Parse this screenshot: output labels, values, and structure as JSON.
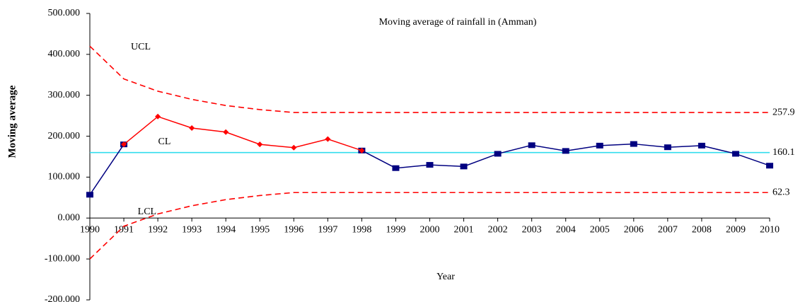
{
  "chart_data": {
    "type": "line",
    "title": "Moving average of rainfall in (Amman)",
    "x_label": "Year",
    "y_label": "Moving average",
    "categories": [
      "1990",
      "1991",
      "1992",
      "1993",
      "1994",
      "1995",
      "1996",
      "1997",
      "1998",
      "1999",
      "2000",
      "2001",
      "2002",
      "2003",
      "2004",
      "2005",
      "2006",
      "2007",
      "2008",
      "2009",
      "2010"
    ],
    "ylim": [
      -200,
      500
    ],
    "yticks": [
      {
        "value": -200,
        "label": "-200.000"
      },
      {
        "value": -100,
        "label": "-100.000"
      },
      {
        "value": 0,
        "label": "0.000"
      },
      {
        "value": 100,
        "label": "100.000"
      },
      {
        "value": 200,
        "label": "200.000"
      },
      {
        "value": 300,
        "label": "300.000"
      },
      {
        "value": 400,
        "label": "400.000"
      },
      {
        "value": 500,
        "label": "500.000"
      }
    ],
    "series": [
      {
        "color": "#000080",
        "marker": "square",
        "values": [
          57,
          180,
          null,
          null,
          null,
          null,
          null,
          null,
          165,
          122,
          130,
          126,
          157,
          178,
          164,
          177,
          181,
          173,
          177,
          157,
          128
        ]
      },
      {
        "color": "#ff0000",
        "marker": "diamond",
        "values": [
          null,
          180,
          248,
          220,
          210,
          180,
          172,
          193,
          165,
          null,
          null,
          null,
          null,
          null,
          null,
          null,
          null,
          null,
          null,
          null,
          null
        ]
      }
    ],
    "control_lines": [
      {
        "name": "UCL",
        "color": "#ff0000",
        "dashed": true,
        "end_value_label": "257.9",
        "values": [
          420,
          340,
          310,
          290,
          275,
          265,
          257.9,
          257.9,
          257.9,
          257.9,
          257.9,
          257.9,
          257.9,
          257.9,
          257.9,
          257.9,
          257.9,
          257.9,
          257.9,
          257.9,
          257.9
        ]
      },
      {
        "name": "CL",
        "color": "#33ddee",
        "dashed": false,
        "end_value_label": "160.1",
        "values": [
          160.1,
          160.1,
          160.1,
          160.1,
          160.1,
          160.1,
          160.1,
          160.1,
          160.1,
          160.1,
          160.1,
          160.1,
          160.1,
          160.1,
          160.1,
          160.1,
          160.1,
          160.1,
          160.1,
          160.1,
          160.1
        ]
      },
      {
        "name": "LCL",
        "color": "#ff0000",
        "dashed": true,
        "end_value_label": "62.3",
        "values": [
          -100,
          -20,
          10,
          30,
          45,
          55,
          62.3,
          62.3,
          62.3,
          62.3,
          62.3,
          62.3,
          62.3,
          62.3,
          62.3,
          62.3,
          62.3,
          62.3,
          62.3,
          62.3,
          62.3
        ]
      }
    ]
  }
}
